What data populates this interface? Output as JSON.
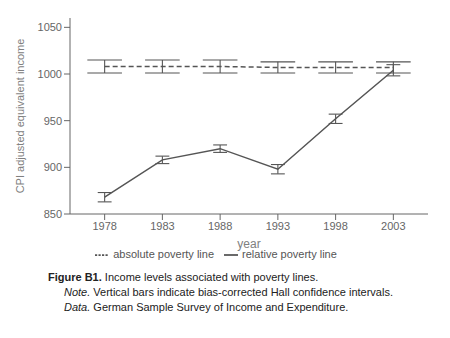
{
  "chart_data": {
    "type": "line",
    "x": [
      1978,
      1983,
      1988,
      1993,
      1998,
      2003
    ],
    "xlim": [
      1975,
      2006
    ],
    "xticks": [
      1978,
      1983,
      1988,
      1993,
      1998,
      2003
    ],
    "ylim": [
      850,
      1060
    ],
    "yticks": [
      850,
      900,
      950,
      1000,
      1050
    ],
    "xlabel": "year",
    "ylabel": "CPI adjusted equivalent income",
    "grid": false,
    "series": [
      {
        "name": "absolute poverty line",
        "color": "#555555",
        "line_style": "dashed",
        "values": [
          1008,
          1008,
          1008,
          1007,
          1007,
          1007
        ],
        "ci_low": [
          1001,
          1001,
          1001,
          1001,
          1001,
          1001
        ],
        "ci_high": [
          1015,
          1015,
          1015,
          1013,
          1013,
          1013
        ]
      },
      {
        "name": "relative poverty line",
        "color": "#555555",
        "line_style": "solid",
        "values": [
          868,
          908,
          920,
          898,
          952,
          1004
        ],
        "ci_low": [
          863,
          904,
          916,
          893,
          947,
          998
        ],
        "ci_high": [
          873,
          912,
          924,
          903,
          957,
          1010
        ]
      }
    ],
    "annotations": [
      [
        "Figure B1.",
        "Income levels associated with poverty lines."
      ],
      [
        "Note.",
        "Vertical bars indicate bias-corrected Hall confidence intervals."
      ],
      [
        "Data.",
        "German Sample Survey of Income and Expenditure."
      ]
    ]
  }
}
